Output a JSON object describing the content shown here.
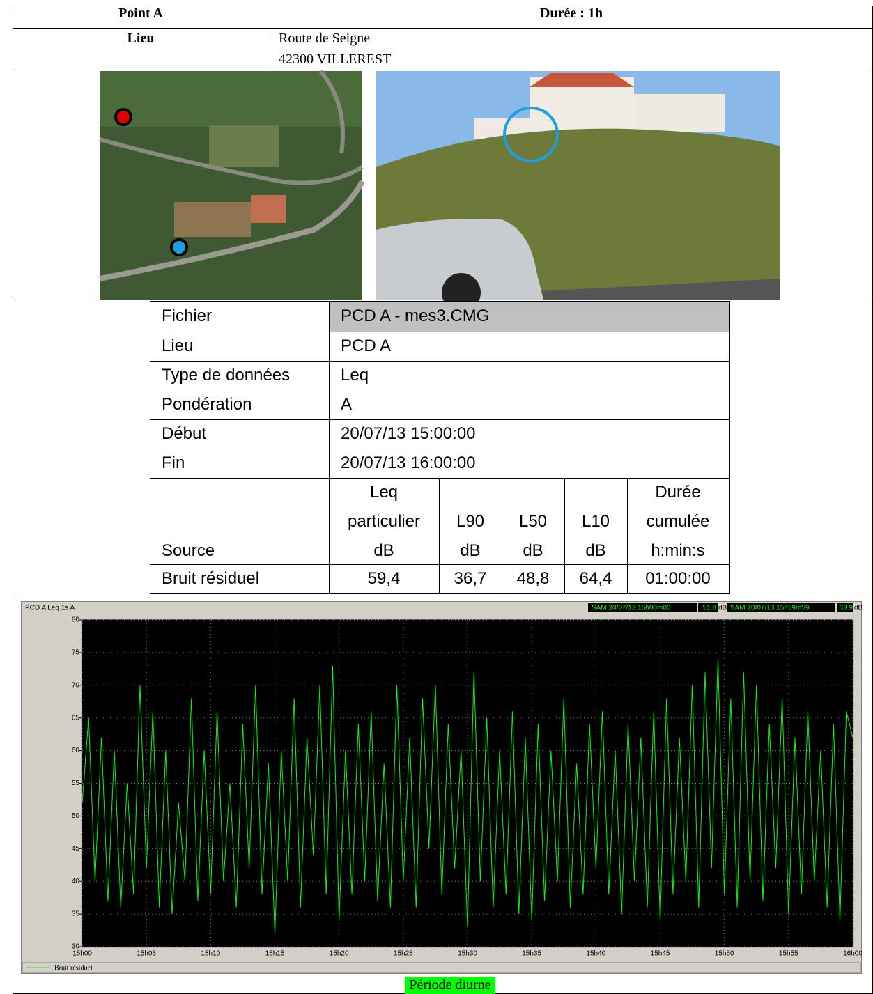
{
  "header": {
    "point": "Point A",
    "duree": "Durée : 1h"
  },
  "lieu": {
    "label": "Lieu",
    "lines": [
      "Route de Seigne",
      "42300 VILLEREST"
    ]
  },
  "file_table": {
    "rows": [
      [
        "Fichier",
        "PCD A - mes3.CMG"
      ],
      [
        "Lieu",
        "PCD A"
      ],
      [
        "Type de données",
        "Leq"
      ],
      [
        "Pondération",
        "A"
      ],
      [
        "Début",
        "20/07/13 15:00:00"
      ],
      [
        "Fin",
        "20/07/13 16:00:00"
      ]
    ],
    "columns": [
      [
        "Source"
      ],
      [
        "Leq",
        "particulier",
        "dB"
      ],
      [
        "L90",
        "dB"
      ],
      [
        "L50",
        "dB"
      ],
      [
        "L10",
        "dB"
      ],
      [
        "Durée",
        "cumulée",
        "h:min:s"
      ]
    ],
    "results": [
      [
        "Bruit résiduel",
        "59,4",
        "36,7",
        "48,8",
        "64,4",
        "01:00:00"
      ]
    ]
  },
  "chart": {
    "type": "line",
    "label": "PCD A   Leq 1s  A",
    "cursors": [
      {
        "text": "SAM 20/07/13 15h00m00",
        "value": "51.8",
        "unit": "dB"
      },
      {
        "text": "SAM 20/07/13 15h59m59",
        "value": "63.9",
        "unit": "dB"
      }
    ],
    "ylim": [
      30,
      80
    ],
    "yticks": [
      30,
      35,
      40,
      45,
      50,
      55,
      60,
      65,
      70,
      75,
      80
    ],
    "xlim": [
      0,
      60
    ],
    "xticks": [
      {
        "value": 0,
        "label": "15h00"
      },
      {
        "value": 5,
        "label": "15h05"
      },
      {
        "value": 10,
        "label": "15h10"
      },
      {
        "value": 15,
        "label": "15h15"
      },
      {
        "value": 20,
        "label": "15h20"
      },
      {
        "value": 25,
        "label": "15h25"
      },
      {
        "value": 30,
        "label": "15h30"
      },
      {
        "value": 35,
        "label": "15h35"
      },
      {
        "value": 40,
        "label": "15h40"
      },
      {
        "value": 45,
        "label": "15h45"
      },
      {
        "value": 50,
        "label": "15h50"
      },
      {
        "value": 55,
        "label": "15h55"
      },
      {
        "value": 60,
        "label": "16h00"
      }
    ],
    "grid": true,
    "series": [
      {
        "name": "Bruit résiduel",
        "color": "#00ff00",
        "x": [
          0,
          0.5,
          1,
          1.5,
          2,
          2.5,
          3,
          3.5,
          4,
          4.5,
          5,
          5.5,
          6,
          6.5,
          7,
          7.5,
          8,
          8.5,
          9,
          9.5,
          10,
          10.5,
          11,
          11.5,
          12,
          12.5,
          13,
          13.5,
          14,
          14.5,
          15,
          15.5,
          16,
          16.5,
          17,
          17.5,
          18,
          18.5,
          19,
          19.5,
          20,
          20.5,
          21,
          21.5,
          22,
          22.5,
          23,
          23.5,
          24,
          24.5,
          25,
          25.5,
          26,
          26.5,
          27,
          27.5,
          28,
          28.5,
          29,
          29.5,
          30,
          30.5,
          31,
          31.5,
          32,
          32.5,
          33,
          33.5,
          34,
          34.5,
          35,
          35.5,
          36,
          36.5,
          37,
          37.5,
          38,
          38.5,
          39,
          39.5,
          40,
          40.5,
          41,
          41.5,
          42,
          42.5,
          43,
          43.5,
          44,
          44.5,
          45,
          45.5,
          46,
          46.5,
          47,
          47.5,
          48,
          48.5,
          49,
          49.5,
          50,
          50.5,
          51,
          51.5,
          52,
          52.5,
          53,
          53.5,
          54,
          54.5,
          55,
          55.5,
          56,
          56.5,
          57,
          57.5,
          58,
          58.5,
          59,
          59.5,
          60
        ],
        "values": [
          52,
          65,
          40,
          62,
          37,
          60,
          36,
          55,
          38,
          70,
          42,
          66,
          36,
          60,
          35,
          52,
          40,
          68,
          37,
          60,
          38,
          66,
          40,
          55,
          36,
          64,
          42,
          70,
          38,
          58,
          32,
          60,
          40,
          68,
          36,
          62,
          44,
          70,
          38,
          73,
          34,
          60,
          38,
          64,
          40,
          66,
          37,
          58,
          36,
          70,
          40,
          62,
          36,
          68,
          45,
          70,
          38,
          64,
          42,
          60,
          33,
          72,
          40,
          65,
          36,
          60,
          38,
          66,
          35,
          62,
          34,
          64,
          37,
          60,
          40,
          68,
          36,
          58,
          38,
          64,
          42,
          66,
          38,
          60,
          35,
          64,
          40,
          62,
          36,
          66,
          34,
          68,
          38,
          62,
          40,
          70,
          36,
          72,
          42,
          74,
          38,
          68,
          36,
          72,
          40,
          70,
          37,
          64,
          42,
          68,
          35,
          62,
          38,
          66,
          40,
          60,
          36,
          64,
          34,
          66,
          62
        ]
      }
    ]
  },
  "caption": "Période diurne"
}
